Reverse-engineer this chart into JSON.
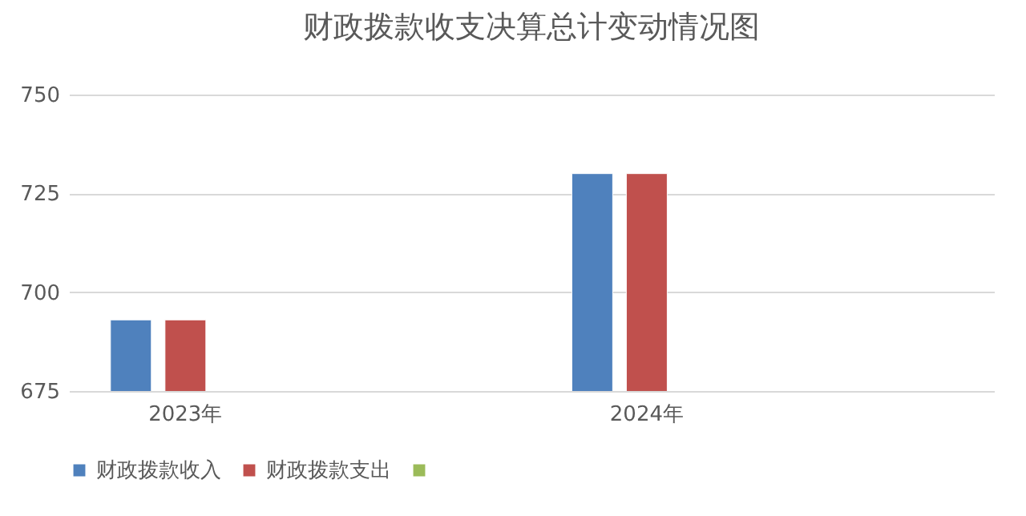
{
  "chart_data": {
    "type": "bar",
    "title": "财政拨款收支决算总计变动情况图",
    "categories": [
      "2023年",
      null,
      "2024年",
      null
    ],
    "series": [
      {
        "name": "财政拨款收入",
        "color": "#4f81bd",
        "values": [
          693,
          null,
          730,
          null
        ]
      },
      {
        "name": "财政拨款支出",
        "color": "#c0504d",
        "values": [
          693,
          null,
          730,
          null
        ]
      },
      {
        "color": "#9bbb59",
        "values": [
          null,
          null,
          null,
          null
        ]
      }
    ],
    "ylim": [
      675,
      750
    ],
    "yticks": [
      675,
      700,
      725,
      750
    ],
    "grid": "y",
    "legend": "bottom"
  }
}
